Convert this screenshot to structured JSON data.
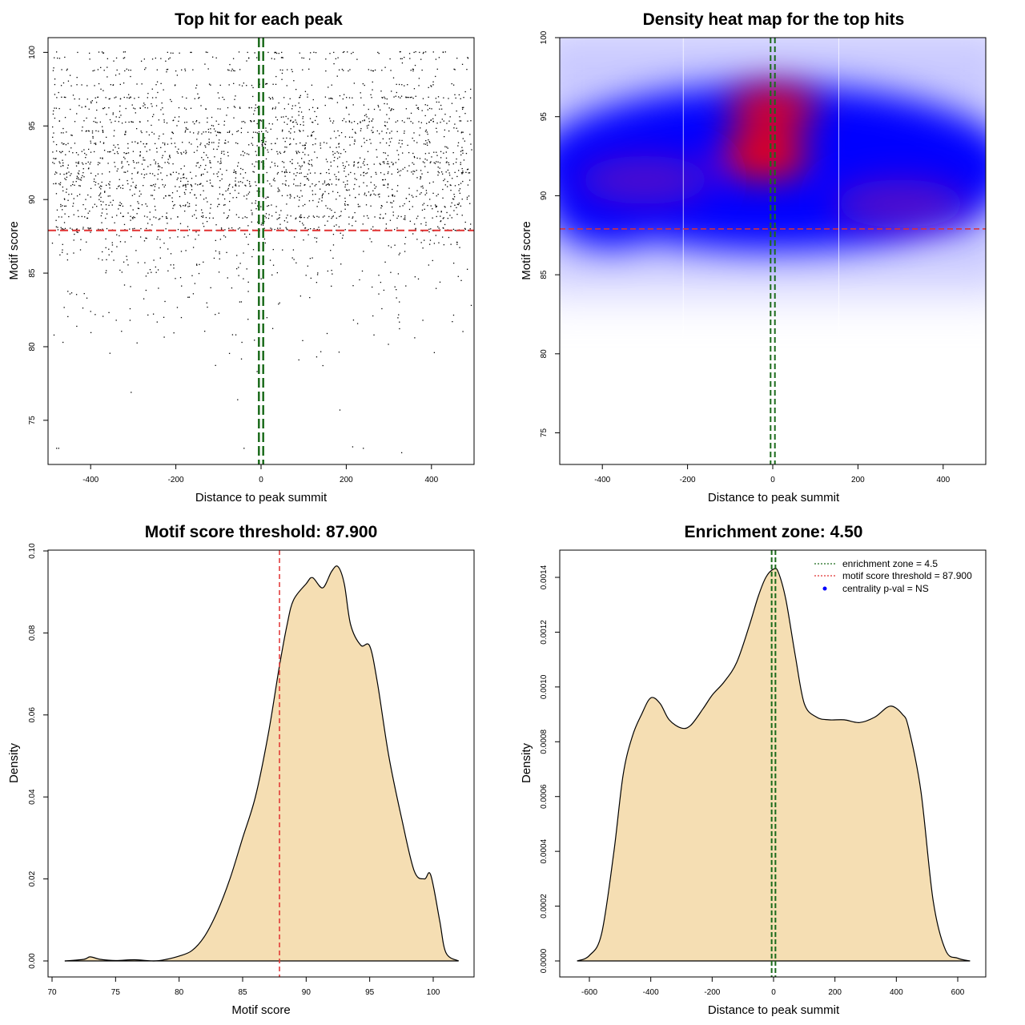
{
  "colors": {
    "threshold": "#e03030",
    "zone": "#1b6b1b",
    "fill": "#f5deb3",
    "heat_low": "#ffffff",
    "heat_mid": "#0000ff",
    "heat_high": "#ff0000"
  },
  "chart_data": [
    {
      "type": "scatter",
      "title": "Top hit for each peak",
      "xlabel": "Distance to peak summit",
      "ylabel": "Motif score",
      "xlim": [
        -500,
        500
      ],
      "ylim": [
        72,
        101
      ],
      "xticks": [
        "-400",
        "-200",
        "0",
        "200",
        "400"
      ],
      "yticks": [
        "75",
        "80",
        "85",
        "90",
        "95",
        "100"
      ],
      "threshold_y": 87.9,
      "zone_x": [
        -2.25,
        2.25
      ],
      "n_points": 2600,
      "points_note": "dense band of hits between scores 85 and 100 spread uniformly across -500..500, sparse tail below 85"
    },
    {
      "type": "heatmap",
      "title": "Density heat map for the top hits",
      "xlabel": "Distance to peak summit",
      "ylabel": "Motif score",
      "xlim": [
        -500,
        500
      ],
      "ylim": [
        73,
        100
      ],
      "xticks": [
        "-400",
        "-200",
        "0",
        "200",
        "400"
      ],
      "yticks": [
        "75",
        "80",
        "85",
        "90",
        "95",
        "100"
      ],
      "threshold_y": 87.9,
      "zone_x": [
        -2.25,
        2.25
      ],
      "hotspots": [
        {
          "x": -20,
          "y": 92.5,
          "intensity": 1.0
        },
        {
          "x": 0,
          "y": 95.5,
          "intensity": 0.85
        },
        {
          "x": 300,
          "y": 89.5,
          "intensity": 0.55
        },
        {
          "x": -300,
          "y": 91.0,
          "intensity": 0.5
        }
      ]
    },
    {
      "type": "area",
      "title": "Motif score threshold: 87.900",
      "xlabel": "Motif score",
      "ylabel": "Density",
      "xlim": [
        70,
        102
      ],
      "ylim": [
        0,
        0.1
      ],
      "xticks": [
        "70",
        "75",
        "80",
        "85",
        "90",
        "95",
        "100"
      ],
      "yticks": [
        "0.00",
        "0.02",
        "0.04",
        "0.06",
        "0.08",
        "0.10"
      ],
      "threshold_x": 87.9,
      "x": [
        71.0,
        72.5,
        73.0,
        73.8,
        75.0,
        76.5,
        78.0,
        79.0,
        80.0,
        81.0,
        82.0,
        83.0,
        84.0,
        85.0,
        86.0,
        87.0,
        87.9,
        88.5,
        89.0,
        90.0,
        90.5,
        91.3,
        92.0,
        92.5,
        93.0,
        93.5,
        94.3,
        95.0,
        95.6,
        96.5,
        97.5,
        98.5,
        99.3,
        99.8,
        100.5,
        101.0,
        102.0
      ],
      "y": [
        0.0,
        0.0004,
        0.001,
        0.0004,
        0.0001,
        0.0003,
        0.0,
        0.0004,
        0.0012,
        0.0025,
        0.006,
        0.012,
        0.02,
        0.03,
        0.04,
        0.055,
        0.072,
        0.082,
        0.088,
        0.092,
        0.0935,
        0.091,
        0.095,
        0.0962,
        0.092,
        0.082,
        0.077,
        0.0768,
        0.068,
        0.05,
        0.035,
        0.022,
        0.02,
        0.021,
        0.01,
        0.002,
        0.0
      ]
    },
    {
      "type": "area",
      "title": "Enrichment zone: 4.50",
      "xlabel": "Distance to peak summit",
      "ylabel": "Density",
      "xlim": [
        -650,
        650
      ],
      "ylim": [
        -3e-05,
        0.00148
      ],
      "xticks": [
        "-600",
        "-400",
        "-200",
        "0",
        "200",
        "400",
        "600"
      ],
      "yticks": [
        "0.0000",
        "0.0002",
        "0.0004",
        "0.0006",
        "0.0008",
        "0.0010",
        "0.0012",
        "0.0014"
      ],
      "zone_x": [
        -2.25,
        2.25
      ],
      "x": [
        -640,
        -600,
        -560,
        -520,
        -490,
        -460,
        -430,
        -400,
        -370,
        -340,
        -300,
        -270,
        -230,
        -200,
        -160,
        -120,
        -80,
        -50,
        -25,
        0,
        15,
        40,
        70,
        100,
        140,
        180,
        230,
        280,
        330,
        380,
        420,
        440,
        480,
        520,
        560,
        600,
        640
      ],
      "y": [
        0.0,
        2e-05,
        0.0001,
        0.0004,
        0.00068,
        0.00082,
        0.0009,
        0.00096,
        0.00094,
        0.00088,
        0.00085,
        0.00086,
        0.00092,
        0.00097,
        0.00102,
        0.00109,
        0.00122,
        0.00133,
        0.0014,
        0.00143,
        0.00142,
        0.00132,
        0.00112,
        0.00094,
        0.00089,
        0.00088,
        0.00088,
        0.00087,
        0.00089,
        0.00093,
        0.0009,
        0.00085,
        0.00062,
        0.00022,
        4e-05,
        1e-05,
        0.0
      ],
      "legend": [
        {
          "label": "enrichment zone = 4.5",
          "style": "dotted-green"
        },
        {
          "label": "motif score threshold = 87.900",
          "style": "dotted-red"
        },
        {
          "label": "centrality p-val = NS",
          "style": "blue-dot"
        }
      ]
    }
  ]
}
